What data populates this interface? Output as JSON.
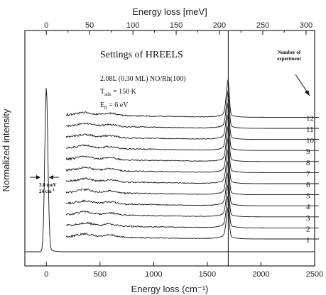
{
  "chart_data": {
    "type": "line",
    "title": "",
    "xlabel": "Energy loss (cm⁻¹)",
    "xlabel_top": "Energy loss [meV]",
    "ylabel": "Normalized intensity",
    "xlim": [
      -200,
      2500
    ],
    "xticks": [
      0,
      500,
      1000,
      1500,
      2000,
      2500
    ],
    "x2_ticks_mev": [
      0,
      50,
      100,
      150,
      200,
      250,
      300
    ],
    "x2_ticks_cm": [
      0,
      403,
      807,
      1210,
      1613,
      2017,
      2420
    ],
    "y_ticks_shown": false,
    "grid": false,
    "vertical_line_x": 1695,
    "elastic_peak": {
      "x": 0,
      "fwhm_cm": 24
    },
    "experiment_numbers": [
      1,
      2,
      3,
      4,
      5,
      6,
      7,
      8,
      9,
      10,
      11,
      12
    ],
    "series_peak_x": 1695,
    "settings": {
      "heading": "Settings of HREELS",
      "dose": "2.08L (0.30 ML) NO/Rh(100)",
      "temp_main": "T",
      "temp_sub": "ads",
      "temp_rest": " = 150 K",
      "energy_main": "E",
      "energy_sub": "0",
      "energy_rest": " = 6 eV"
    },
    "legend_note": [
      "Number of",
      "experiment"
    ],
    "resolution_note": [
      "3.0 meV",
      "24 cm"
    ],
    "resolution_note_sup": "-1"
  }
}
